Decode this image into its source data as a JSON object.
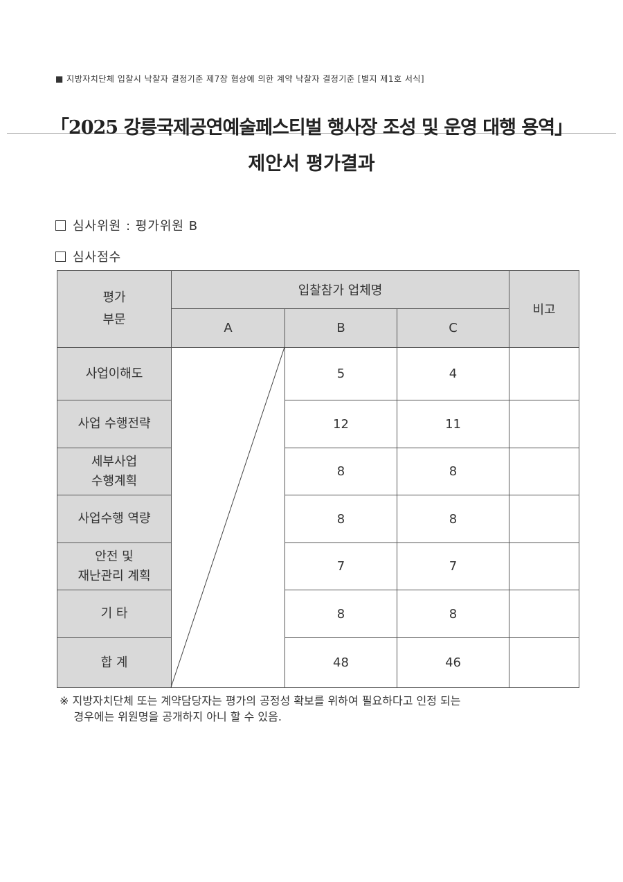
{
  "header_note": "■ 지방자치단체 입찰시 낙찰자 결정기준 제7장 협상에 의한 계약 낙찰자 결정기준 [별지 제1호 서식]",
  "title": "「2025 강릉국제공연예술페스티벌 행사장 조성 및 운영 대행 용역」",
  "subtitle": "제안서 평가결과",
  "evaluator": "심사위원 : 평가위원 B",
  "scores_label": "심사점수",
  "table": {
    "category_header": "평가\n부문",
    "bidders_header": "입찰참가 업체명",
    "remarks_header": "비고",
    "bidders": [
      "A",
      "B",
      "C"
    ],
    "rows": [
      {
        "category": "사업이해도",
        "B": "5",
        "C": "4"
      },
      {
        "category": "사업 수행전략",
        "B": "12",
        "C": "11"
      },
      {
        "category": "세부사업\n수행계획",
        "B": "8",
        "C": "8"
      },
      {
        "category": "사업수행 역량",
        "B": "8",
        "C": "8"
      },
      {
        "category": "안전 및\n재난관리 계획",
        "B": "7",
        "C": "7"
      },
      {
        "category": "기  타",
        "B": "8",
        "C": "8"
      },
      {
        "category": "합  계",
        "B": "48",
        "C": "46"
      }
    ]
  },
  "footnote": "※ 지방자치단체 또는 계약담당자는 평가의 공정성 확보를 위하여 필요하다고 인정 되는\n    경우에는 위원명을 공개하지 아니 할 수 있음."
}
